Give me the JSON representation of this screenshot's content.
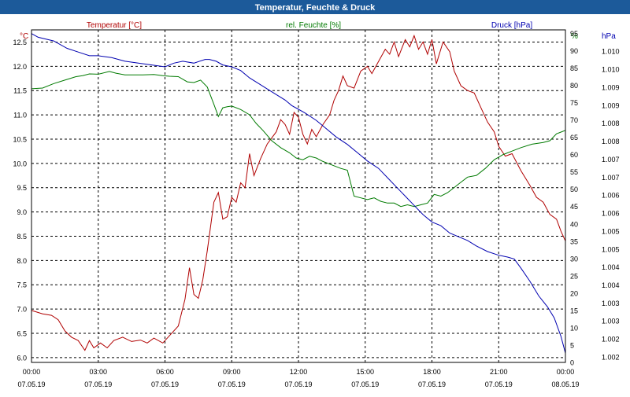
{
  "chart_data": {
    "type": "line",
    "title": "Temperatur, Feuchte & Druck",
    "x": {
      "tick_times": [
        "00:00",
        "03:00",
        "06:00",
        "09:00",
        "12:00",
        "15:00",
        "18:00",
        "21:00",
        "00:00"
      ],
      "tick_dates": [
        "07.05.19",
        "07.05.19",
        "07.05.19",
        "07.05.19",
        "07.05.19",
        "07.05.19",
        "07.05.19",
        "07.05.19",
        "08.05.19"
      ],
      "range_hours": [
        0,
        24
      ]
    },
    "axes": {
      "temperature": {
        "label": "Temperatur [°C]",
        "unit": "°C",
        "range": [
          5.9,
          12.75
        ],
        "ticks": [
          "6.0",
          "6.5",
          "7.0",
          "7.5",
          "8.0",
          "8.5",
          "9.0",
          "9.5",
          "10.0",
          "10.5",
          "11.0",
          "11.5",
          "12.0",
          "12.5"
        ]
      },
      "humidity": {
        "label": "rel. Feuchte [%]",
        "unit": "%",
        "range": [
          0,
          96
        ],
        "ticks": [
          "0",
          "5",
          "10",
          "15",
          "20",
          "25",
          "30",
          "35",
          "40",
          "45",
          "50",
          "55",
          "60",
          "65",
          "70",
          "75",
          "80",
          "85",
          "90",
          "95"
        ]
      },
      "pressure": {
        "label": "Druck [hPa]",
        "unit": "hPa",
        "range": [
          1001.8,
          1010.8
        ],
        "ticks": [
          "1.002",
          "1.002",
          "1.003",
          "1.003",
          "1.004",
          "1.004",
          "1.005",
          "1.005",
          "1.006",
          "1.006",
          "1.007",
          "1.007",
          "1.008",
          "1.008",
          "1.009",
          "1.009",
          "1.010",
          "1.010"
        ]
      }
    },
    "series": [
      {
        "name": "Temperatur [°C]",
        "axis": "temperature",
        "color": "#b00000",
        "points": [
          [
            0,
            6.97
          ],
          [
            0.5,
            6.9
          ],
          [
            0.9,
            6.87
          ],
          [
            1.2,
            6.78
          ],
          [
            1.5,
            6.55
          ],
          [
            1.8,
            6.42
          ],
          [
            2.1,
            6.35
          ],
          [
            2.4,
            6.15
          ],
          [
            2.6,
            6.35
          ],
          [
            2.8,
            6.2
          ],
          [
            3.1,
            6.3
          ],
          [
            3.4,
            6.2
          ],
          [
            3.7,
            6.35
          ],
          [
            4.1,
            6.42
          ],
          [
            4.5,
            6.33
          ],
          [
            4.9,
            6.36
          ],
          [
            5.2,
            6.3
          ],
          [
            5.5,
            6.4
          ],
          [
            5.9,
            6.3
          ],
          [
            6.3,
            6.5
          ],
          [
            6.6,
            6.65
          ],
          [
            6.9,
            7.2
          ],
          [
            7.1,
            7.85
          ],
          [
            7.3,
            7.3
          ],
          [
            7.5,
            7.22
          ],
          [
            7.7,
            7.6
          ],
          [
            7.9,
            8.2
          ],
          [
            8.2,
            9.2
          ],
          [
            8.4,
            9.4
          ],
          [
            8.6,
            8.85
          ],
          [
            8.8,
            8.9
          ],
          [
            9.0,
            9.3
          ],
          [
            9.2,
            9.2
          ],
          [
            9.4,
            9.6
          ],
          [
            9.6,
            9.5
          ],
          [
            9.8,
            10.2
          ],
          [
            10.0,
            9.75
          ],
          [
            10.3,
            10.1
          ],
          [
            10.6,
            10.4
          ],
          [
            11.0,
            10.65
          ],
          [
            11.2,
            10.9
          ],
          [
            11.4,
            10.8
          ],
          [
            11.6,
            10.6
          ],
          [
            11.8,
            11.05
          ],
          [
            12.0,
            10.95
          ],
          [
            12.2,
            10.6
          ],
          [
            12.4,
            10.4
          ],
          [
            12.6,
            10.7
          ],
          [
            12.8,
            10.55
          ],
          [
            13.1,
            10.8
          ],
          [
            13.4,
            11.0
          ],
          [
            13.6,
            11.3
          ],
          [
            13.8,
            11.5
          ],
          [
            14.0,
            11.8
          ],
          [
            14.2,
            11.6
          ],
          [
            14.5,
            11.55
          ],
          [
            14.8,
            11.9
          ],
          [
            15.1,
            12.0
          ],
          [
            15.3,
            11.85
          ],
          [
            15.6,
            12.1
          ],
          [
            15.9,
            12.35
          ],
          [
            16.1,
            12.25
          ],
          [
            16.3,
            12.5
          ],
          [
            16.5,
            12.2
          ],
          [
            16.8,
            12.55
          ],
          [
            17.0,
            12.4
          ],
          [
            17.2,
            12.63
          ],
          [
            17.4,
            12.35
          ],
          [
            17.6,
            12.5
          ],
          [
            17.8,
            12.25
          ],
          [
            18.0,
            12.55
          ],
          [
            18.2,
            12.05
          ],
          [
            18.5,
            12.5
          ],
          [
            18.8,
            12.3
          ],
          [
            19.0,
            11.9
          ],
          [
            19.3,
            11.6
          ],
          [
            19.6,
            11.5
          ],
          [
            19.9,
            11.45
          ],
          [
            20.2,
            11.15
          ],
          [
            20.5,
            10.85
          ],
          [
            20.8,
            10.65
          ],
          [
            21.0,
            10.35
          ],
          [
            21.3,
            10.15
          ],
          [
            21.6,
            10.2
          ],
          [
            22.0,
            9.85
          ],
          [
            22.4,
            9.55
          ],
          [
            22.7,
            9.3
          ],
          [
            23.0,
            9.2
          ],
          [
            23.3,
            8.95
          ],
          [
            23.6,
            8.85
          ],
          [
            23.8,
            8.6
          ],
          [
            24.0,
            8.4
          ]
        ]
      },
      {
        "name": "rel. Feuchte [%]",
        "axis": "humidity",
        "color": "#007a00",
        "points": [
          [
            0,
            79
          ],
          [
            0.5,
            79.2
          ],
          [
            1.0,
            80.5
          ],
          [
            1.5,
            81.5
          ],
          [
            2.0,
            82.5
          ],
          [
            2.3,
            82.8
          ],
          [
            2.6,
            83.3
          ],
          [
            3.0,
            83.2
          ],
          [
            3.5,
            84.0
          ],
          [
            3.8,
            83.5
          ],
          [
            4.2,
            83.0
          ],
          [
            4.6,
            83.0
          ],
          [
            5.0,
            83.0
          ],
          [
            5.5,
            83.1
          ],
          [
            5.9,
            82.8
          ],
          [
            6.2,
            82.6
          ],
          [
            6.6,
            82.5
          ],
          [
            7.0,
            81.0
          ],
          [
            7.3,
            80.8
          ],
          [
            7.6,
            81.5
          ],
          [
            7.9,
            79.5
          ],
          [
            8.2,
            74.5
          ],
          [
            8.4,
            71.0
          ],
          [
            8.6,
            73.5
          ],
          [
            8.8,
            73.8
          ],
          [
            9.0,
            74.0
          ],
          [
            9.4,
            73.0
          ],
          [
            9.8,
            71.5
          ],
          [
            10.1,
            69.0
          ],
          [
            10.4,
            67.0
          ],
          [
            10.8,
            64.0
          ],
          [
            11.2,
            62.0
          ],
          [
            11.6,
            60.5
          ],
          [
            11.9,
            59.0
          ],
          [
            12.2,
            58.5
          ],
          [
            12.5,
            59.5
          ],
          [
            12.8,
            59.0
          ],
          [
            13.1,
            58.0
          ],
          [
            13.5,
            57.0
          ],
          [
            13.9,
            56.0
          ],
          [
            14.2,
            55.5
          ],
          [
            14.5,
            48.0
          ],
          [
            14.8,
            47.5
          ],
          [
            15.1,
            47.0
          ],
          [
            15.4,
            47.5
          ],
          [
            15.7,
            46.5
          ],
          [
            16.0,
            46.0
          ],
          [
            16.3,
            46.0
          ],
          [
            16.6,
            45.0
          ],
          [
            16.9,
            45.5
          ],
          [
            17.2,
            45.0
          ],
          [
            17.5,
            45.5
          ],
          [
            17.8,
            46.0
          ],
          [
            18.1,
            48.5
          ],
          [
            18.4,
            48.0
          ],
          [
            18.7,
            49.0
          ],
          [
            19.0,
            50.5
          ],
          [
            19.3,
            52.0
          ],
          [
            19.6,
            53.5
          ],
          [
            20.0,
            54.0
          ],
          [
            20.4,
            56.0
          ],
          [
            20.8,
            58.5
          ],
          [
            21.2,
            60.0
          ],
          [
            21.6,
            61.0
          ],
          [
            22.0,
            62.0
          ],
          [
            22.5,
            63.0
          ],
          [
            23.0,
            63.5
          ],
          [
            23.3,
            64.0
          ],
          [
            23.6,
            66.0
          ],
          [
            23.8,
            66.5
          ],
          [
            24.0,
            67.0
          ]
        ]
      },
      {
        "name": "Druck [hPa]",
        "axis": "pressure",
        "color": "#0000b0",
        "points": [
          [
            0,
            1010.7
          ],
          [
            0.3,
            1010.6
          ],
          [
            1.0,
            1010.5
          ],
          [
            1.6,
            1010.3
          ],
          [
            2.1,
            1010.2
          ],
          [
            2.6,
            1010.1
          ],
          [
            3.0,
            1010.1
          ],
          [
            3.6,
            1010.05
          ],
          [
            4.2,
            1009.95
          ],
          [
            4.8,
            1009.9
          ],
          [
            5.4,
            1009.85
          ],
          [
            6.0,
            1009.8
          ],
          [
            6.4,
            1009.9
          ],
          [
            6.8,
            1009.95
          ],
          [
            7.3,
            1009.9
          ],
          [
            7.8,
            1010.0
          ],
          [
            8.0,
            1010.0
          ],
          [
            8.3,
            1009.95
          ],
          [
            8.6,
            1009.85
          ],
          [
            9.0,
            1009.8
          ],
          [
            9.4,
            1009.7
          ],
          [
            9.8,
            1009.5
          ],
          [
            10.2,
            1009.35
          ],
          [
            10.6,
            1009.2
          ],
          [
            11.0,
            1009.05
          ],
          [
            11.4,
            1008.9
          ],
          [
            11.7,
            1008.75
          ],
          [
            12.0,
            1008.65
          ],
          [
            12.3,
            1008.55
          ],
          [
            12.8,
            1008.35
          ],
          [
            13.2,
            1008.15
          ],
          [
            13.7,
            1007.9
          ],
          [
            14.2,
            1007.7
          ],
          [
            14.7,
            1007.45
          ],
          [
            15.1,
            1007.25
          ],
          [
            15.6,
            1007.05
          ],
          [
            16.0,
            1006.8
          ],
          [
            16.4,
            1006.55
          ],
          [
            16.8,
            1006.3
          ],
          [
            17.2,
            1006.05
          ],
          [
            17.6,
            1005.8
          ],
          [
            18.0,
            1005.6
          ],
          [
            18.4,
            1005.5
          ],
          [
            18.8,
            1005.3
          ],
          [
            19.2,
            1005.2
          ],
          [
            19.6,
            1005.1
          ],
          [
            20.0,
            1004.95
          ],
          [
            20.5,
            1004.8
          ],
          [
            21.0,
            1004.7
          ],
          [
            21.4,
            1004.65
          ],
          [
            21.7,
            1004.6
          ],
          [
            22.0,
            1004.35
          ],
          [
            22.4,
            1004.0
          ],
          [
            22.8,
            1003.6
          ],
          [
            23.2,
            1003.3
          ],
          [
            23.5,
            1003.0
          ],
          [
            23.8,
            1002.5
          ],
          [
            24.0,
            1002.05
          ]
        ]
      }
    ],
    "grid": true,
    "legend": "top (axis labels colored per series)",
    "colors": {
      "title_bar": "#1c5a9a",
      "title_text": "#ffffff",
      "temperature": "#b00000",
      "humidity": "#007a00",
      "pressure": "#0000b0",
      "grid": "#000000",
      "axis_text": "#000000"
    }
  }
}
